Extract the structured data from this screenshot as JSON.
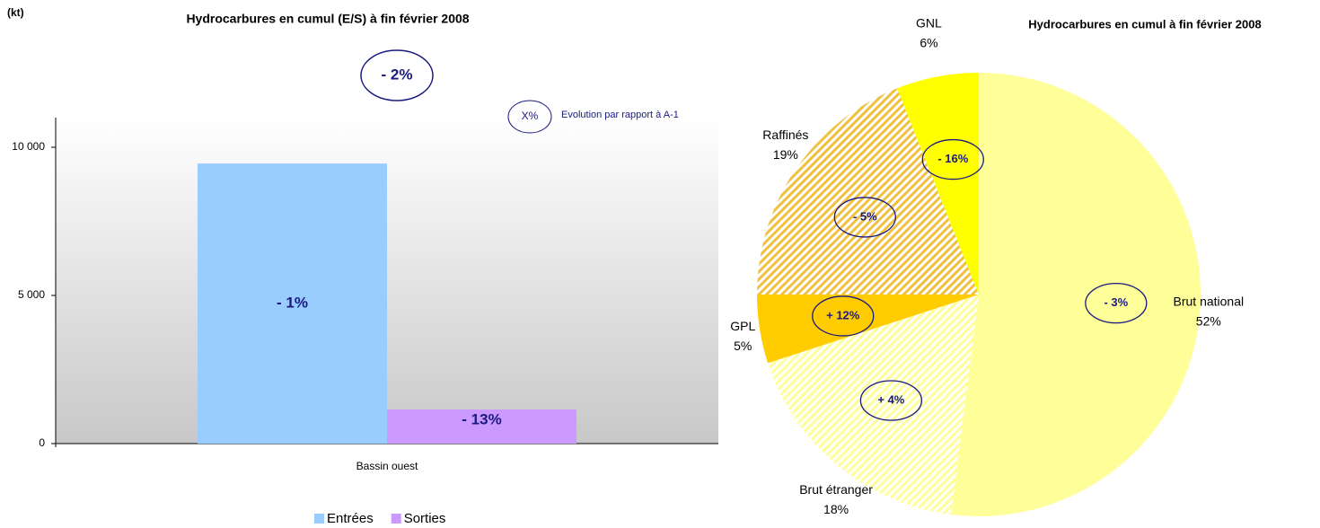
{
  "chart_data": [
    {
      "type": "bar",
      "title": "Hydrocarbures en cumul (E/S) à fin février  2008",
      "y_unit": "(kt)",
      "categories": [
        "Bassin ouest"
      ],
      "series": [
        {
          "name": "Entrées",
          "color": "#99ccff",
          "values": [
            9450
          ],
          "change_labels": [
            "- 1%"
          ]
        },
        {
          "name": "Sorties",
          "color": "#cc99ff",
          "values": [
            1150
          ],
          "change_labels": [
            "- 13%"
          ]
        }
      ],
      "ylim": [
        0,
        11000
      ],
      "yticks": [
        0,
        {
          "value": 5000,
          "label": "5 000"
        },
        {
          "value": 10000,
          "label": "10 000"
        }
      ],
      "total_change": "- 2%",
      "annotation_key": "X%",
      "annotation_text": "Evolution par rapport à A-1",
      "legend": "bottom"
    },
    {
      "type": "pie",
      "title": "Hydrocarbures en cumul à fin février 2008",
      "categories": [
        "Brut national",
        "Brut étranger",
        "GPL",
        "Raffinés",
        "GNL"
      ],
      "values": [
        52,
        18,
        5,
        19,
        6
      ],
      "value_labels": [
        "52%",
        "18%",
        "5%",
        "19%",
        "6%"
      ],
      "change_labels": [
        "- 3%",
        "+ 4%",
        "+ 12%",
        "- 5%",
        "- 16%"
      ],
      "colors": [
        "#ffff99",
        "#ffff99",
        "#ffcc00",
        "#f0c040",
        "#ffff00"
      ],
      "hatched": [
        false,
        true,
        false,
        true,
        false
      ]
    }
  ]
}
